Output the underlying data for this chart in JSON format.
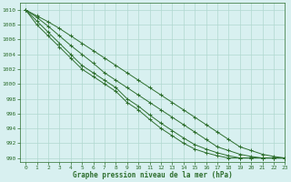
{
  "title": "Graphe pression niveau de la mer (hPa)",
  "background_color": "#d8f0f0",
  "grid_color": "#b0d8d0",
  "line_color": "#2d6e2d",
  "xlim": [
    -0.5,
    23
  ],
  "ylim": [
    989.5,
    1011
  ],
  "yticks": [
    990,
    992,
    994,
    996,
    998,
    1000,
    1002,
    1004,
    1006,
    1008,
    1010
  ],
  "xticks": [
    0,
    1,
    2,
    3,
    4,
    5,
    6,
    7,
    8,
    9,
    10,
    11,
    12,
    13,
    14,
    15,
    16,
    17,
    18,
    19,
    20,
    21,
    22,
    23
  ],
  "lines": [
    {
      "x": [
        0,
        1,
        2,
        3,
        4,
        5,
        6,
        7,
        8,
        9,
        10,
        11,
        12,
        13,
        14,
        15,
        16,
        17,
        18,
        19,
        20,
        21,
        22,
        23
      ],
      "y": [
        1010,
        1009.2,
        1008.4,
        1007.5,
        1006.5,
        1005.5,
        1004.5,
        1003.5,
        1002.5,
        1001.5,
        1000.5,
        999.5,
        998.5,
        997.5,
        996.5,
        995.5,
        994.5,
        993.5,
        992.5,
        991.5,
        991,
        990.5,
        990.2,
        990
      ]
    },
    {
      "x": [
        0,
        1,
        2,
        3,
        4,
        5,
        6,
        7,
        8,
        9,
        10,
        11,
        12,
        13,
        14,
        15,
        16,
        17,
        18,
        19,
        20,
        21,
        22,
        23
      ],
      "y": [
        1010,
        1009,
        1007.8,
        1006.5,
        1005.2,
        1004,
        1002.8,
        1001.5,
        1000.5,
        999.5,
        998.5,
        997.5,
        996.5,
        995.5,
        994.5,
        993.5,
        992.5,
        991.5,
        991,
        990.5,
        990.2,
        990,
        990,
        990
      ]
    },
    {
      "x": [
        0,
        1,
        2,
        3,
        4,
        5,
        6,
        7,
        8,
        9,
        10,
        11,
        12,
        13,
        14,
        15,
        16,
        17,
        18,
        19,
        20,
        21,
        22,
        23
      ],
      "y": [
        1010,
        1008.5,
        1007,
        1005.5,
        1004,
        1002.5,
        1001.5,
        1000.5,
        999.5,
        998,
        997,
        995.8,
        994.7,
        993.7,
        992.7,
        991.8,
        991.2,
        990.7,
        990.3,
        990,
        990,
        990,
        990,
        990
      ]
    },
    {
      "x": [
        0,
        1,
        2,
        3,
        4,
        5,
        6,
        7,
        8,
        9,
        10,
        11,
        12,
        13,
        14,
        15,
        16,
        17,
        18,
        19,
        20,
        21,
        22,
        23
      ],
      "y": [
        1010,
        1008,
        1006.5,
        1005,
        1003.5,
        1002,
        1001,
        1000,
        999,
        997.5,
        996.5,
        995.2,
        994,
        993,
        992,
        991.2,
        990.7,
        990.3,
        990,
        990,
        990,
        990,
        990,
        990
      ]
    }
  ]
}
